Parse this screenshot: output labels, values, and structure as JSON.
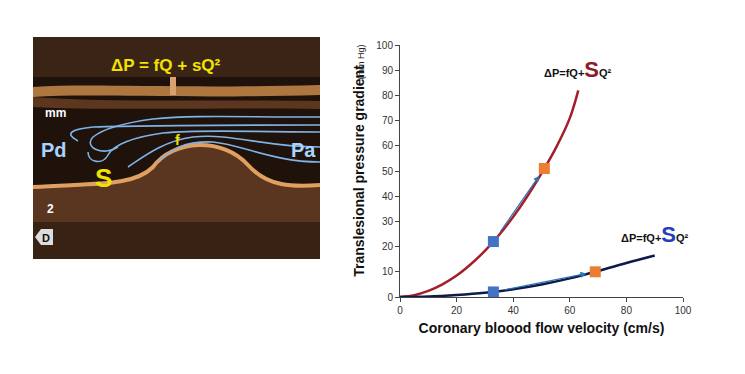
{
  "image_panel": {
    "equation": "ΔP = fQ + sQ²",
    "scale_unit": "mm",
    "scale_value": "2",
    "direction": "D",
    "distal": "Pd",
    "proximal": "Pa",
    "separation": "S",
    "friction": "f"
  },
  "chart_data": {
    "type": "line",
    "x_label": "Coronary bloood flow velocity (cm/s)",
    "y_label": "Translesional pressure gradient",
    "y_unit": "(mm Hg)",
    "xlim": [
      0,
      100
    ],
    "xticks": [
      0,
      20,
      40,
      60,
      80,
      100
    ],
    "ylim": [
      0,
      100
    ],
    "yticks": [
      0,
      10,
      20,
      30,
      40,
      50,
      60,
      70,
      80,
      90,
      100
    ],
    "grid": false,
    "series": [
      {
        "color": "#a31f2a",
        "label": {
          "text": "ΔP=fQ+",
          "emphasis": "S",
          "suffix": "Q²",
          "emphasis_color": "#8b1a2a"
        },
        "x": [
          0,
          5,
          10,
          15,
          20,
          25,
          30,
          35,
          40,
          45,
          50,
          55,
          60,
          63
        ],
        "values": [
          0,
          0.7,
          2.4,
          5,
          8.5,
          13,
          18.3,
          24.6,
          31.8,
          40,
          49.1,
          59,
          71,
          82
        ],
        "points": {
          "x": [
            33,
            51
          ],
          "values": [
            22,
            51
          ],
          "colors": [
            "#4472c4",
            "#ed7d31"
          ],
          "marker": "square"
        }
      },
      {
        "color": "#0d1b4a",
        "label": {
          "text": "ΔP=fQ+",
          "emphasis": "S",
          "suffix": "Q²",
          "emphasis_color": "#1f3fbf"
        },
        "x": [
          0,
          10,
          20,
          30,
          40,
          50,
          60,
          70,
          80,
          90
        ],
        "values": [
          0,
          0.2,
          0.8,
          1.7,
          3.1,
          5,
          7.4,
          10.3,
          13.5,
          16.5
        ],
        "points": {
          "x": [
            33,
            69
          ],
          "values": [
            2,
            10
          ],
          "colors": [
            "#4472c4",
            "#ed7d31"
          ],
          "marker": "square"
        }
      }
    ]
  }
}
